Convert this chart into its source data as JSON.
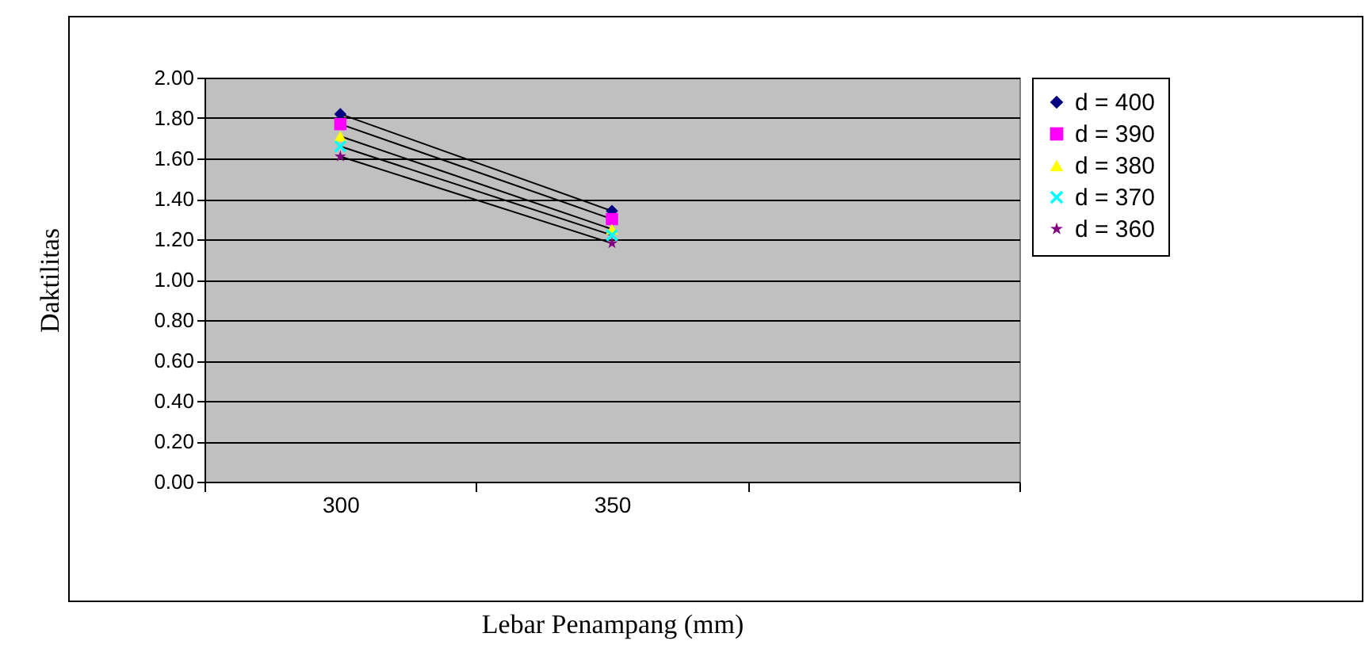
{
  "chart_data": {
    "type": "line",
    "xlabel": "Lebar Penampang (mm)",
    "ylabel": "Daktilitas",
    "categories": [
      "300",
      "350",
      null
    ],
    "series": [
      {
        "name": "d = 400",
        "color": "#000080",
        "marker": "diamond",
        "values": [
          1.82,
          1.34,
          null
        ]
      },
      {
        "name": "d = 390",
        "color": "#ff00ff",
        "marker": "square",
        "values": [
          1.77,
          1.3,
          null
        ]
      },
      {
        "name": "d = 380",
        "color": "#ffff00",
        "marker": "triangle",
        "values": [
          1.71,
          1.25,
          null
        ]
      },
      {
        "name": "d = 370",
        "color": "#00ffff",
        "marker": "cross",
        "values": [
          1.66,
          1.22,
          null
        ]
      },
      {
        "name": "d = 360",
        "color": "#800080",
        "marker": "star",
        "values": [
          1.61,
          1.18,
          null
        ]
      }
    ],
    "ylim": [
      0,
      2
    ],
    "yticks": [
      {
        "value": 0,
        "label": "0.00"
      },
      {
        "value": 0.2,
        "label": "0.20"
      },
      {
        "value": 0.4,
        "label": "0.40"
      },
      {
        "value": 0.6,
        "label": "0.60"
      },
      {
        "value": 0.8,
        "label": "0.80"
      },
      {
        "value": 1,
        "label": "1.00"
      },
      {
        "value": 1.2,
        "label": "1.20"
      },
      {
        "value": 1.4,
        "label": "1.40"
      },
      {
        "value": 1.6,
        "label": "1.60"
      },
      {
        "value": 1.8,
        "label": "1.80"
      },
      {
        "value": 2,
        "label": "2.00"
      }
    ],
    "grid": "y",
    "legend": "right",
    "line_style": "solid"
  }
}
